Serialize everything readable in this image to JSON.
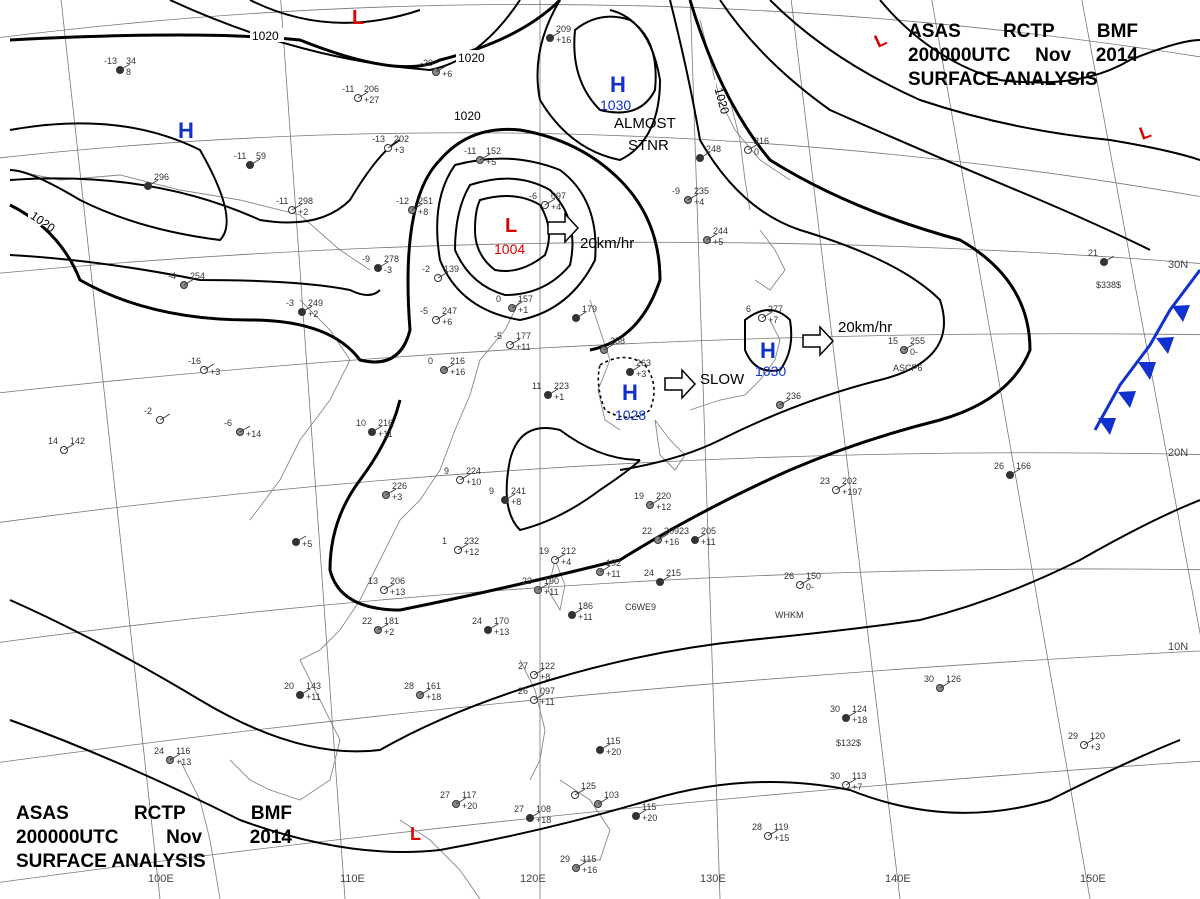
{
  "title": {
    "line1": [
      "ASAS",
      "RCTP",
      "BMF"
    ],
    "line2": [
      "200000UTC",
      "Nov",
      "2014"
    ],
    "line3": "SURFACE ANALYSIS"
  },
  "colors": {
    "low": "#e00000",
    "high": "#1030d0",
    "front": "#1030d0",
    "isobar": "#000000",
    "grid": "#666666",
    "coast": "#777777",
    "station": "#333333"
  },
  "pressure_centers": [
    {
      "type": "H",
      "value": "1030"
    },
    {
      "type": "H",
      "value": ""
    },
    {
      "type": "H",
      "value": "1028"
    },
    {
      "type": "H",
      "value": "1030"
    },
    {
      "type": "L",
      "value": "1004"
    },
    {
      "type": "L",
      "value": ""
    },
    {
      "type": "L",
      "value": ""
    },
    {
      "type": "L",
      "value": ""
    },
    {
      "type": "L",
      "value": ""
    }
  ],
  "isobar_labels": [
    "1020",
    "1020",
    "1020",
    "1020",
    "1020"
  ],
  "motion_labels": [
    "20km/hr",
    "20km/hr",
    "SLOW",
    "ALMOST",
    "STNR"
  ],
  "lat_labels": [
    "30N",
    "20N",
    "10N"
  ],
  "lon_labels": [
    "100E",
    "110E",
    "120E",
    "130E",
    "140E",
    "150E"
  ],
  "stations": [
    {
      "top": "-13",
      "right": "34",
      "ident": "8"
    },
    {
      "top": "-11",
      "right": "206",
      "ident": "+27"
    },
    {
      "top": "-20",
      "right": "",
      "ident": "+6"
    },
    {
      "top": "",
      "right": "209",
      "ident": "+16"
    },
    {
      "top": "-13",
      "right": "202",
      "ident": "+3"
    },
    {
      "top": "-11",
      "right": "152",
      "ident": "+5"
    },
    {
      "top": "-11",
      "right": "59",
      "ident": ""
    },
    {
      "top": "-11",
      "right": "298",
      "ident": "+2"
    },
    {
      "top": "-12",
      "right": "251",
      "ident": "+8"
    },
    {
      "top": "",
      "right": "296",
      "ident": ""
    },
    {
      "top": "-6",
      "right": "097",
      "ident": "+4"
    },
    {
      "top": "-9",
      "right": "235",
      "ident": "+4"
    },
    {
      "top": "",
      "right": "248",
      "ident": ""
    },
    {
      "top": "",
      "right": "216",
      "ident": "0"
    },
    {
      "top": "",
      "right": "244",
      "ident": "+5"
    },
    {
      "top": "-9",
      "right": "278",
      "ident": "-3"
    },
    {
      "top": "-2",
      "right": "139",
      "ident": ""
    },
    {
      "top": "-4",
      "right": "254",
      "ident": ""
    },
    {
      "top": "-3",
      "right": "249",
      "ident": "+2"
    },
    {
      "top": "-5",
      "right": "247",
      "ident": "+6"
    },
    {
      "top": "0",
      "right": "157",
      "ident": "+1"
    },
    {
      "top": "",
      "right": "179",
      "ident": ""
    },
    {
      "top": "-5",
      "right": "177",
      "ident": "+11"
    },
    {
      "top": "",
      "right": "258",
      "ident": ""
    },
    {
      "top": "",
      "right": "263",
      "ident": "+3"
    },
    {
      "top": "6",
      "right": "277",
      "ident": "+7"
    },
    {
      "top": "15",
      "right": "255",
      "ident": "0-"
    },
    {
      "top": "21",
      "right": "",
      "ident": ""
    },
    {
      "top": "-16",
      "right": "",
      "ident": "+3"
    },
    {
      "top": "0",
      "right": "216",
      "ident": "+16"
    },
    {
      "top": "11",
      "right": "223",
      "ident": "+1"
    },
    {
      "top": "-2",
      "right": "",
      "ident": ""
    },
    {
      "top": "-6",
      "right": "",
      "ident": "+14"
    },
    {
      "top": "10",
      "right": "216",
      "ident": "+11"
    },
    {
      "top": "14",
      "right": "142",
      "ident": ""
    },
    {
      "top": "",
      "right": "236",
      "ident": ""
    },
    {
      "top": "26",
      "right": "166",
      "ident": ""
    },
    {
      "top": "9",
      "right": "224",
      "ident": "+10"
    },
    {
      "top": "",
      "right": "226",
      "ident": "+3"
    },
    {
      "top": "9",
      "right": "241",
      "ident": "+8"
    },
    {
      "top": "23",
      "right": "202",
      "ident": "+197"
    },
    {
      "top": "19",
      "right": "220",
      "ident": "+12"
    },
    {
      "top": "",
      "right": "",
      "ident": "+5"
    },
    {
      "top": "1",
      "right": "232",
      "ident": "+12"
    },
    {
      "top": "22",
      "right": "209",
      "ident": "+16"
    },
    {
      "top": "23",
      "right": "205",
      "ident": "+11"
    },
    {
      "top": "19",
      "right": "212",
      "ident": "+4"
    },
    {
      "top": "",
      "right": "192",
      "ident": "+11"
    },
    {
      "top": "24",
      "right": "215",
      "ident": ""
    },
    {
      "top": "13",
      "right": "206",
      "ident": "+13"
    },
    {
      "top": "23",
      "right": "190",
      "ident": "+11"
    },
    {
      "top": "",
      "right": "186",
      "ident": "+11"
    },
    {
      "top": "26",
      "right": "150",
      "ident": "0-"
    },
    {
      "top": "22",
      "right": "181",
      "ident": "+2"
    },
    {
      "top": "24",
      "right": "170",
      "ident": "+13"
    },
    {
      "top": "27",
      "right": "122",
      "ident": "+8"
    },
    {
      "top": "28",
      "right": "161",
      "ident": "+18"
    },
    {
      "top": "20",
      "right": "143",
      "ident": "+11"
    },
    {
      "top": "26",
      "right": "097",
      "ident": "+11"
    },
    {
      "top": "30",
      "right": "126",
      "ident": ""
    },
    {
      "top": "30",
      "right": "124",
      "ident": "+18"
    },
    {
      "top": "29",
      "right": "120",
      "ident": "+3"
    },
    {
      "top": "24",
      "right": "116",
      "ident": "+13"
    },
    {
      "top": "",
      "right": "115",
      "ident": "+20"
    },
    {
      "top": "30",
      "right": "113",
      "ident": "+7"
    },
    {
      "top": "27",
      "right": "117",
      "ident": "+20"
    },
    {
      "top": "27",
      "right": "108",
      "ident": "+18"
    },
    {
      "top": "",
      "right": "125",
      "ident": ""
    },
    {
      "top": "",
      "right": "103",
      "ident": ""
    },
    {
      "top": "",
      "right": "115",
      "ident": "+20"
    },
    {
      "top": "28",
      "right": "119",
      "ident": "+15"
    },
    {
      "top": "29",
      "right": "115",
      "ident": "+16"
    }
  ],
  "ship_ids": [
    "$338$",
    "ASCP6",
    "C6WE9",
    "WHKM",
    "$132$"
  ]
}
